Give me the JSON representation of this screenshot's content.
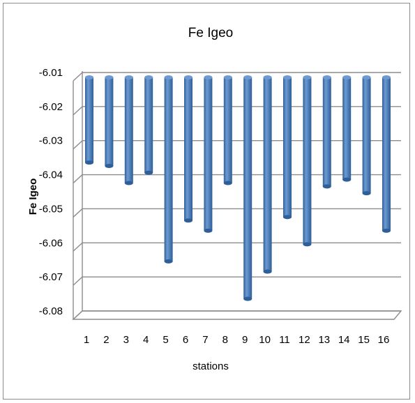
{
  "chart_data": {
    "type": "bar",
    "title": "Fe Igeo",
    "xlabel": "stations",
    "ylabel": "Fe Igeo",
    "categories": [
      "1",
      "2",
      "3",
      "4",
      "5",
      "6",
      "7",
      "8",
      "9",
      "10",
      "11",
      "12",
      "13",
      "14",
      "15",
      "16"
    ],
    "series": [
      {
        "values": [
          -6.035,
          -6.036,
          -6.041,
          -6.038,
          -6.064,
          -6.052,
          -6.055,
          -6.041,
          -6.075,
          -6.067,
          -6.051,
          -6.059,
          -6.042,
          -6.04,
          -6.044,
          -6.055
        ]
      }
    ],
    "y_ticks": [
      "-6.01",
      "-6.02",
      "-6.03",
      "-6.04",
      "-6.05",
      "-6.06",
      "-6.07",
      "-6.08"
    ],
    "ylim": [
      -6.08,
      -6.01
    ],
    "y_axis_reversed": true,
    "grid": true,
    "legend": "none",
    "colors": {
      "bar": "#4a7ebb",
      "bar_light": "#6d9ad2",
      "bar_dark": "#2f5f98",
      "grid": "#8c8c8c"
    }
  }
}
